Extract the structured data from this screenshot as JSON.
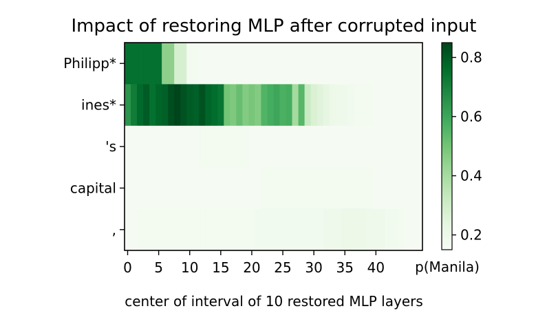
{
  "chart_data": {
    "type": "heatmap",
    "title": "Impact of restoring MLP after corrupted input",
    "xlabel": "center of interval of 10 restored MLP layers",
    "ylabel": "",
    "x_ticks": [
      "0",
      "5",
      "10",
      "15",
      "20",
      "25",
      "30",
      "35",
      "40"
    ],
    "y_categories": [
      "Philipp*",
      "ines*",
      "'s",
      "capital",
      ","
    ],
    "x": [
      0,
      1,
      2,
      3,
      4,
      5,
      6,
      7,
      8,
      9,
      10,
      11,
      12,
      13,
      14,
      15,
      16,
      17,
      18,
      19,
      20,
      21,
      22,
      23,
      24,
      25,
      26,
      27,
      28,
      29,
      30,
      31,
      32,
      33,
      34,
      35,
      36,
      37,
      38,
      39,
      40,
      41,
      42,
      43,
      44,
      45,
      46,
      47
    ],
    "values": [
      [
        0.75,
        0.75,
        0.75,
        0.75,
        0.75,
        0.75,
        0.45,
        0.45,
        0.28,
        0.28,
        0.17,
        0.17,
        0.16,
        0.16,
        0.16,
        0.16,
        0.16,
        0.16,
        0.16,
        0.16,
        0.16,
        0.16,
        0.16,
        0.16,
        0.16,
        0.16,
        0.16,
        0.16,
        0.16,
        0.16,
        0.16,
        0.16,
        0.16,
        0.16,
        0.16,
        0.16,
        0.16,
        0.16,
        0.16,
        0.16,
        0.16,
        0.16,
        0.16,
        0.16,
        0.16,
        0.16,
        0.16,
        0.16
      ],
      [
        0.65,
        0.72,
        0.77,
        0.8,
        0.75,
        0.78,
        0.79,
        0.83,
        0.85,
        0.82,
        0.8,
        0.79,
        0.82,
        0.78,
        0.76,
        0.74,
        0.5,
        0.48,
        0.52,
        0.47,
        0.49,
        0.47,
        0.56,
        0.58,
        0.6,
        0.57,
        0.58,
        0.4,
        0.55,
        0.32,
        0.27,
        0.25,
        0.23,
        0.2,
        0.19,
        0.19,
        0.18,
        0.17,
        0.17,
        0.17,
        0.16,
        0.16,
        0.16,
        0.16,
        0.16,
        0.16,
        0.16,
        0.16
      ],
      [
        0.16,
        0.16,
        0.16,
        0.16,
        0.16,
        0.16,
        0.16,
        0.16,
        0.16,
        0.16,
        0.16,
        0.16,
        0.17,
        0.17,
        0.17,
        0.17,
        0.17,
        0.17,
        0.17,
        0.17,
        0.16,
        0.16,
        0.16,
        0.16,
        0.16,
        0.16,
        0.16,
        0.16,
        0.16,
        0.16,
        0.16,
        0.16,
        0.16,
        0.16,
        0.16,
        0.16,
        0.16,
        0.16,
        0.16,
        0.16,
        0.16,
        0.16,
        0.16,
        0.16,
        0.16,
        0.16,
        0.16,
        0.16
      ],
      [
        0.16,
        0.16,
        0.16,
        0.16,
        0.16,
        0.16,
        0.16,
        0.16,
        0.16,
        0.16,
        0.16,
        0.16,
        0.16,
        0.16,
        0.16,
        0.16,
        0.16,
        0.16,
        0.16,
        0.16,
        0.16,
        0.16,
        0.17,
        0.17,
        0.17,
        0.17,
        0.17,
        0.17,
        0.17,
        0.17,
        0.17,
        0.17,
        0.17,
        0.17,
        0.17,
        0.17,
        0.17,
        0.17,
        0.17,
        0.17,
        0.16,
        0.16,
        0.16,
        0.16,
        0.16,
        0.16,
        0.16,
        0.16
      ],
      [
        0.16,
        0.16,
        0.17,
        0.17,
        0.17,
        0.17,
        0.17,
        0.17,
        0.17,
        0.17,
        0.17,
        0.17,
        0.17,
        0.17,
        0.17,
        0.17,
        0.17,
        0.17,
        0.17,
        0.17,
        0.17,
        0.18,
        0.18,
        0.18,
        0.18,
        0.18,
        0.18,
        0.18,
        0.18,
        0.18,
        0.18,
        0.18,
        0.19,
        0.19,
        0.19,
        0.2,
        0.2,
        0.2,
        0.2,
        0.19,
        0.19,
        0.19,
        0.18,
        0.18,
        0.17,
        0.16,
        0.16,
        0.16
      ]
    ],
    "colorbar": {
      "range": [
        0.15,
        0.85
      ],
      "ticks": [
        "0.2",
        "0.4",
        "0.6",
        "0.8"
      ],
      "label": "p(Manila)",
      "colormap": "Greens"
    },
    "grid": false
  }
}
